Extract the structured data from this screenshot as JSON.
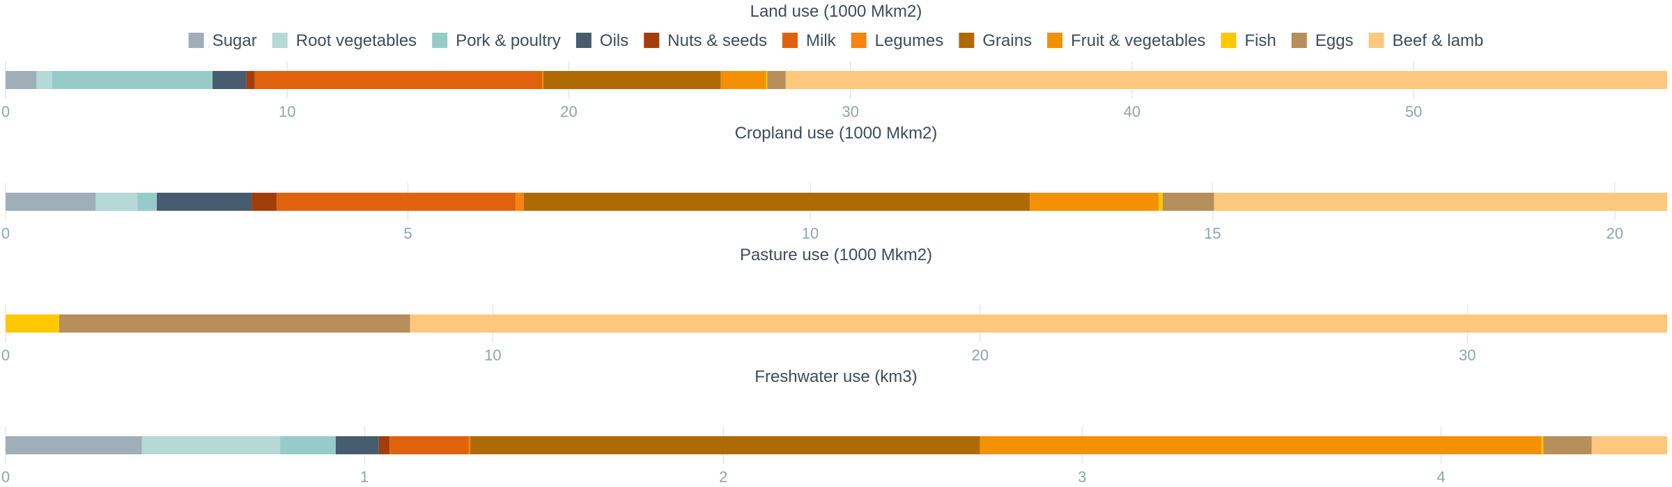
{
  "legend": [
    {
      "name": "Sugar",
      "color": "#a0aeba"
    },
    {
      "name": "Root vegetables",
      "color": "#b4d9d7"
    },
    {
      "name": "Pork & poultry",
      "color": "#97cbc9"
    },
    {
      "name": "Oils",
      "color": "#475c6e"
    },
    {
      "name": "Nuts & seeds",
      "color": "#a13e0a"
    },
    {
      "name": "Milk",
      "color": "#e0620d"
    },
    {
      "name": "Legumes",
      "color": "#f9830e"
    },
    {
      "name": "Grains",
      "color": "#b06a05"
    },
    {
      "name": "Fruit & vegetables",
      "color": "#f39102"
    },
    {
      "name": "Fish",
      "color": "#ffc800"
    },
    {
      "name": "Eggs",
      "color": "#b68f5b"
    },
    {
      "name": "Beef & lamb",
      "color": "#fdc87e"
    }
  ],
  "chart_data": [
    {
      "type": "bar",
      "orientation": "horizontal-stacked",
      "title": "Land use (1000 Mkm2)",
      "xlim": [
        0,
        59
      ],
      "ticks": [
        0,
        10,
        20,
        30,
        40,
        50
      ],
      "grid": true,
      "series": [
        {
          "name": "Sugar",
          "values": [
            1.1
          ]
        },
        {
          "name": "Root vegetables",
          "values": [
            0.55
          ]
        },
        {
          "name": "Pork & poultry",
          "values": [
            5.7
          ]
        },
        {
          "name": "Oils",
          "values": [
            1.2
          ]
        },
        {
          "name": "Nuts & seeds",
          "values": [
            0.3
          ]
        },
        {
          "name": "Milk",
          "values": [
            10.2
          ]
        },
        {
          "name": "Legumes",
          "values": [
            0.05
          ]
        },
        {
          "name": "Grains",
          "values": [
            6.3
          ]
        },
        {
          "name": "Fruit & vegetables",
          "values": [
            1.6
          ]
        },
        {
          "name": "Fish",
          "values": [
            0.05
          ]
        },
        {
          "name": "Eggs",
          "values": [
            0.65
          ]
        },
        {
          "name": "Beef & lamb",
          "values": [
            31.3
          ]
        }
      ]
    },
    {
      "type": "bar",
      "orientation": "horizontal-stacked",
      "title": "Cropland use (1000 Mkm2)",
      "xlim": [
        0,
        20.65
      ],
      "ticks": [
        0,
        5,
        10,
        15,
        20
      ],
      "grid": true,
      "series": [
        {
          "name": "Sugar",
          "values": [
            1.12
          ]
        },
        {
          "name": "Root vegetables",
          "values": [
            0.52
          ]
        },
        {
          "name": "Pork & poultry",
          "values": [
            0.24
          ]
        },
        {
          "name": "Oils",
          "values": [
            1.18
          ]
        },
        {
          "name": "Nuts & seeds",
          "values": [
            0.31
          ]
        },
        {
          "name": "Milk",
          "values": [
            2.97
          ]
        },
        {
          "name": "Legumes",
          "values": [
            0.1
          ]
        },
        {
          "name": "Grains",
          "values": [
            6.29
          ]
        },
        {
          "name": "Fruit & vegetables",
          "values": [
            1.6
          ]
        },
        {
          "name": "Fish",
          "values": [
            0.05
          ]
        },
        {
          "name": "Eggs",
          "values": [
            0.64
          ]
        },
        {
          "name": "Beef & lamb",
          "values": [
            5.63
          ]
        }
      ]
    },
    {
      "type": "bar",
      "orientation": "horizontal-stacked",
      "title": "Pasture use (1000 Mkm2)",
      "xlim": [
        0,
        34.1
      ],
      "ticks": [
        0,
        10,
        20,
        30
      ],
      "grid": true,
      "series": [
        {
          "name": "Fish",
          "values": [
            1.1
          ]
        },
        {
          "name": "Eggs",
          "values": [
            7.2
          ]
        },
        {
          "name": "Beef & lamb",
          "values": [
            25.8
          ]
        }
      ]
    },
    {
      "type": "bar",
      "orientation": "horizontal-stacked",
      "title": "Freshwater use (km3)",
      "xlim": [
        0,
        4.63
      ],
      "ticks": [
        0,
        1,
        2,
        3,
        4
      ],
      "grid": true,
      "series": [
        {
          "name": "Sugar",
          "values": [
            0.38
          ]
        },
        {
          "name": "Root vegetables",
          "values": [
            0.385
          ]
        },
        {
          "name": "Pork & poultry",
          "values": [
            0.155
          ]
        },
        {
          "name": "Oils",
          "values": [
            0.12
          ]
        },
        {
          "name": "Nuts & seeds",
          "values": [
            0.03
          ]
        },
        {
          "name": "Milk",
          "values": [
            0.22
          ]
        },
        {
          "name": "Legumes",
          "values": [
            0.005
          ]
        },
        {
          "name": "Grains",
          "values": [
            1.42
          ]
        },
        {
          "name": "Fruit & vegetables",
          "values": [
            1.565
          ]
        },
        {
          "name": "Fish",
          "values": [
            0.005
          ]
        },
        {
          "name": "Eggs",
          "values": [
            0.135
          ]
        },
        {
          "name": "Beef & lamb",
          "values": [
            0.21
          ]
        }
      ]
    }
  ]
}
